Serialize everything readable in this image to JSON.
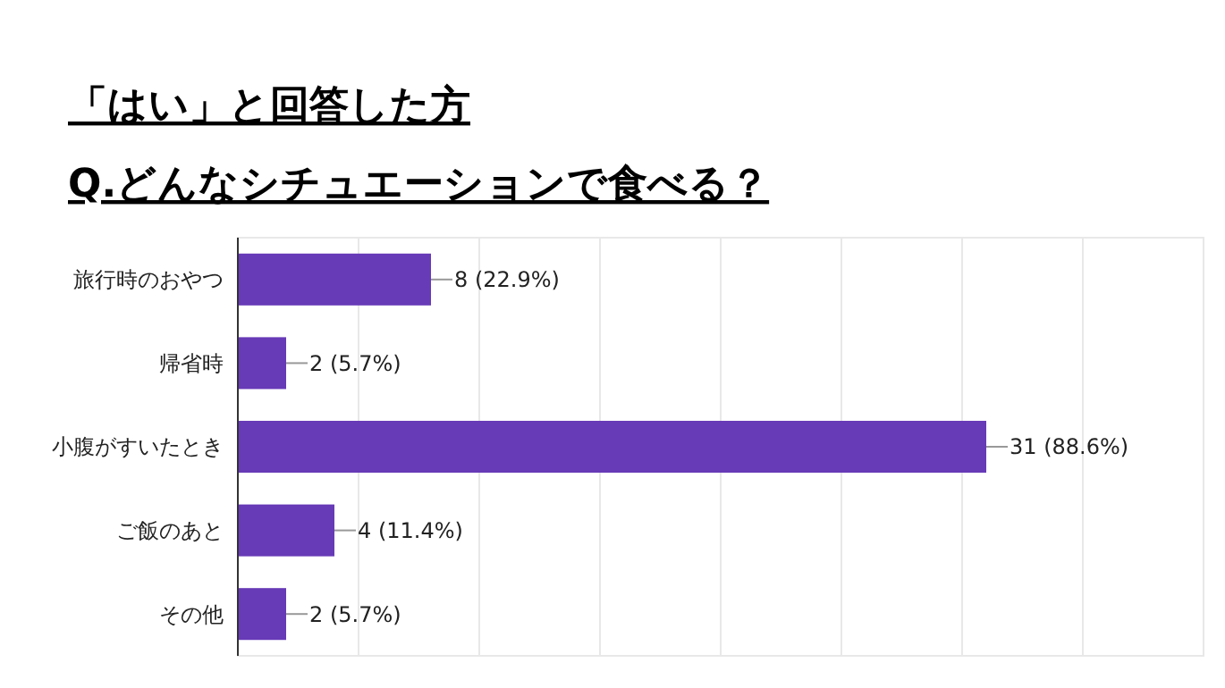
{
  "chart_data": {
    "type": "bar",
    "orientation": "horizontal",
    "title": "「はい」と回答した方",
    "subtitle": "Q.どんなシチュエーションで食べる？",
    "categories": [
      "旅行時のおやつ",
      "帰省時",
      "小腹がすいたとき",
      "ご飯のあと",
      "その他"
    ],
    "values": [
      8,
      2,
      31,
      4,
      2
    ],
    "color": "#673ab7",
    "value_labels": [
      "8 (22.9%)",
      "2 (5.7%)",
      "31 (88.6%)",
      "4 (11.4%)",
      "2 (5.7%)"
    ],
    "xlim": [
      0,
      40
    ],
    "xticks": [
      {
        "value": 0,
        "label": null
      },
      {
        "value": 5,
        "label": null
      },
      {
        "value": 10,
        "label": null
      },
      {
        "value": 15,
        "label": null
      },
      {
        "value": 20,
        "label": null
      },
      {
        "value": 25,
        "label": null
      },
      {
        "value": 30,
        "label": null
      },
      {
        "value": 35,
        "label": null
      },
      {
        "value": 40,
        "label": null
      }
    ],
    "grid": "x",
    "tick_labels": "y"
  }
}
